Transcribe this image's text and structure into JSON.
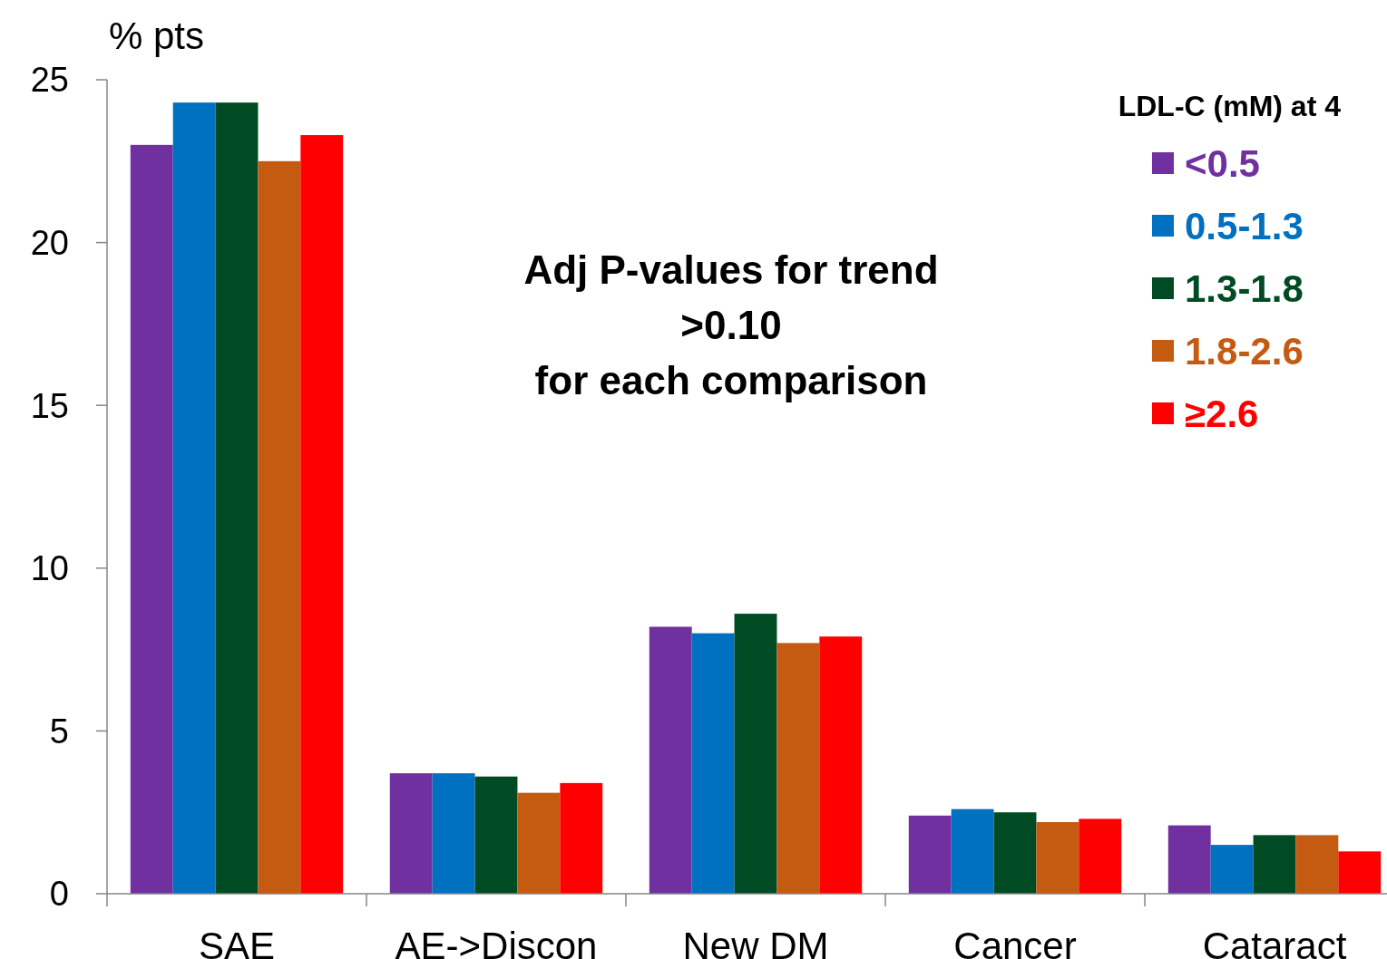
{
  "chart_data": {
    "type": "bar",
    "ylabel": "% pts",
    "legend_title": "LDL-C (mM) at 4",
    "legend": "top right",
    "grid": false,
    "categories": [
      "SAE",
      "AE->Discon",
      "New DM",
      "Cancer",
      "Cataract"
    ],
    "ylim": [
      0,
      25
    ],
    "yticks": [
      0,
      5,
      10,
      15,
      20,
      25
    ],
    "annotations": [
      "Adj P-values for trend\n>0.10\nfor each comparison"
    ],
    "series": [
      {
        "name": "<0.5",
        "color": "#7030a0",
        "values": [
          23.0,
          3.7,
          8.2,
          2.4,
          2.1
        ]
      },
      {
        "name": "0.5-1.3",
        "color": "#0070c0",
        "values": [
          24.3,
          3.7,
          8.0,
          2.6,
          1.5
        ]
      },
      {
        "name": "1.3-1.8",
        "color": "#004b23",
        "values": [
          24.3,
          3.6,
          8.6,
          2.5,
          1.8
        ]
      },
      {
        "name": "1.8-2.6",
        "color": "#c55a11",
        "values": [
          22.5,
          3.1,
          7.7,
          2.2,
          1.8
        ]
      },
      {
        "name": "≥2.6",
        "color": "#ff0000",
        "values": [
          23.3,
          3.4,
          7.9,
          2.3,
          1.3
        ]
      }
    ]
  }
}
